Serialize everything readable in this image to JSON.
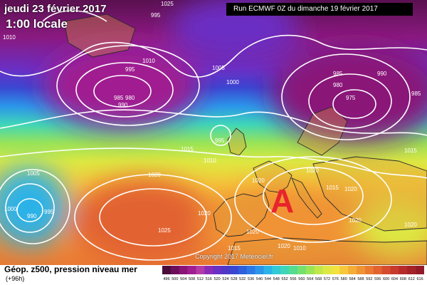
{
  "header": {
    "date": "jeudi 23 février 2017",
    "time": "1:00 locale",
    "run": "Run ECMWF 0Z du dimanche 19 février 2017"
  },
  "copyright": "Copyright 2017 Meteociel.fr",
  "legend": {
    "title": "Géop. z500, pression niveau mer",
    "subtitle": "(+96h)",
    "scale_values": [
      496,
      500,
      504,
      508,
      512,
      516,
      520,
      524,
      528,
      532,
      536,
      540,
      544,
      548,
      552,
      556,
      560,
      564,
      568,
      572,
      576,
      580,
      584,
      588,
      592,
      596,
      600,
      604,
      608,
      612,
      616
    ],
    "scale_colors": [
      "#4a0c3a",
      "#6a0e5a",
      "#8a1478",
      "#a01f90",
      "#b43aa8",
      "#8a2bb8",
      "#6a2fc4",
      "#4f37c8",
      "#3a47d2",
      "#2e5fdc",
      "#2b79e6",
      "#2b95ea",
      "#2bb2e8",
      "#33c9d8",
      "#3fd6b8",
      "#54dc90",
      "#76e06e",
      "#9ae456",
      "#bfe84a",
      "#dde842",
      "#f2e23e",
      "#f6c83a",
      "#f4ad36",
      "#f09334",
      "#ea7a32",
      "#e26230",
      "#d64c2e",
      "#c83a2c",
      "#b62c2a",
      "#a42228",
      "#921a26"
    ]
  },
  "map": {
    "anticyclone_label": "A",
    "isobar_labels": [
      "1025",
      "1010",
      "995",
      "1005",
      "1010",
      "1000",
      "995",
      "985",
      "980",
      "990",
      "985",
      "980",
      "990",
      "975",
      "985",
      "1015",
      "1015",
      "995",
      "1010",
      "1020",
      "1020",
      "1020",
      "1015",
      "1020",
      "1005",
      "1000",
      "990",
      "995",
      "1020",
      "1025",
      "1020",
      "1020",
      "1015",
      "1010",
      "1020",
      "1020"
    ]
  }
}
